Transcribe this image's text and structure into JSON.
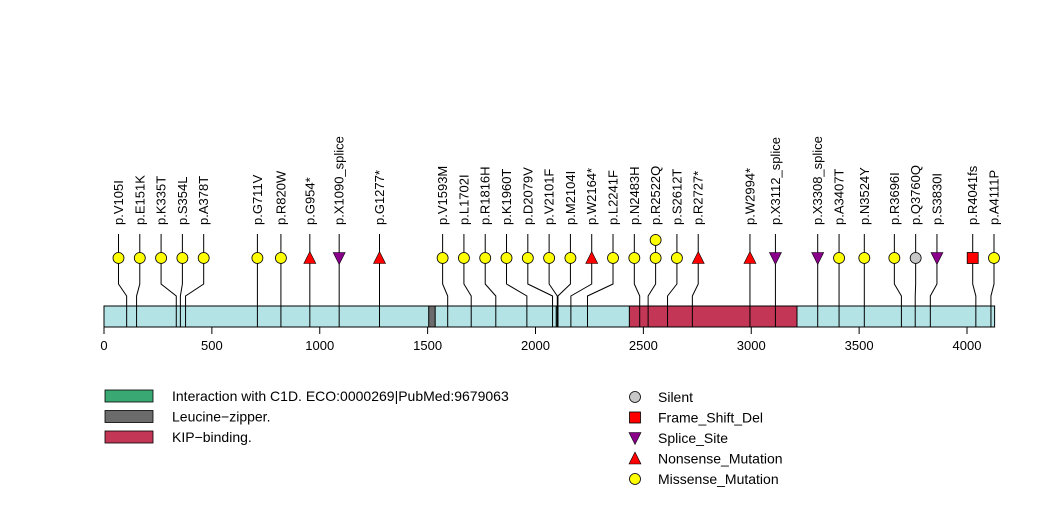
{
  "chart_data": {
    "type": "lollipop",
    "title": "",
    "xlabel": "",
    "ylabel": "",
    "protein_length": 4128,
    "xlim": [
      0,
      4128
    ],
    "x_ticks": [
      0,
      500,
      1000,
      1500,
      2000,
      2500,
      3000,
      3500,
      4000
    ],
    "x_tick_labels": [
      "0",
      "500",
      "1000",
      "1500",
      "2000",
      "2500",
      "3000",
      "3500",
      "4000"
    ],
    "backbone_color": "#b4e3e6",
    "domains": [
      {
        "name": "Interaction with C1D. ECO:0000269|PubMed:9679063",
        "start": 2096,
        "end": 2104,
        "color": "#3aa873"
      },
      {
        "name": "Leucine-zipper.",
        "start": 1505,
        "end": 1535,
        "color": "#6b6b6b"
      },
      {
        "name": "KIP-binding.",
        "start": 2435,
        "end": 3212,
        "color": "#c33655"
      }
    ],
    "mutation_types": {
      "Silent": {
        "color": "#c8c8c8",
        "shape": "circle"
      },
      "Frame_Shift_Del": {
        "color": "#ff0000",
        "shape": "square"
      },
      "Splice_Site": {
        "color": "#8b008b",
        "shape": "triangle-down"
      },
      "Nonsense_Mutation": {
        "color": "#ff0000",
        "shape": "triangle-up"
      },
      "Missense_Mutation": {
        "color": "#ffff00",
        "shape": "circle"
      }
    },
    "mutations": [
      {
        "label": "p.V105I",
        "position": 105,
        "type": "Missense_Mutation",
        "count": 1
      },
      {
        "label": "p.E151K",
        "position": 151,
        "type": "Missense_Mutation",
        "count": 1
      },
      {
        "label": "p.K335T",
        "position": 335,
        "type": "Missense_Mutation",
        "count": 1
      },
      {
        "label": "p.S354L",
        "position": 354,
        "type": "Missense_Mutation",
        "count": 1
      },
      {
        "label": "p.A378T",
        "position": 378,
        "type": "Missense_Mutation",
        "count": 1
      },
      {
        "label": "p.G711V",
        "position": 711,
        "type": "Missense_Mutation",
        "count": 1
      },
      {
        "label": "p.R820W",
        "position": 820,
        "type": "Missense_Mutation",
        "count": 1
      },
      {
        "label": "p.G954*",
        "position": 954,
        "type": "Nonsense_Mutation",
        "count": 1
      },
      {
        "label": "p.X1090_splice",
        "position": 1090,
        "type": "Splice_Site",
        "count": 1
      },
      {
        "label": "p.G1277*",
        "position": 1277,
        "type": "Nonsense_Mutation",
        "count": 1
      },
      {
        "label": "p.V1593M",
        "position": 1593,
        "type": "Missense_Mutation",
        "count": 1
      },
      {
        "label": "p.L1702I",
        "position": 1702,
        "type": "Missense_Mutation",
        "count": 1
      },
      {
        "label": "p.R1816H",
        "position": 1816,
        "type": "Missense_Mutation",
        "count": 1
      },
      {
        "label": "p.K1960T",
        "position": 1960,
        "type": "Missense_Mutation",
        "count": 1
      },
      {
        "label": "p.D2079V",
        "position": 2079,
        "type": "Missense_Mutation",
        "count": 1
      },
      {
        "label": "p.V2101F",
        "position": 2101,
        "type": "Missense_Mutation",
        "count": 1
      },
      {
        "label": "p.M2104I",
        "position": 2104,
        "type": "Missense_Mutation",
        "count": 1
      },
      {
        "label": "p.W2164*",
        "position": 2164,
        "type": "Nonsense_Mutation",
        "count": 1
      },
      {
        "label": "p.L2241F",
        "position": 2241,
        "type": "Missense_Mutation",
        "count": 1
      },
      {
        "label": "p.N2483H",
        "position": 2483,
        "type": "Missense_Mutation",
        "count": 1
      },
      {
        "label": "p.R2522Q",
        "position": 2522,
        "type": "Missense_Mutation",
        "count": 2
      },
      {
        "label": "p.S2612T",
        "position": 2612,
        "type": "Missense_Mutation",
        "count": 1
      },
      {
        "label": "p.R2727*",
        "position": 2727,
        "type": "Nonsense_Mutation",
        "count": 1
      },
      {
        "label": "p.W2994*",
        "position": 2994,
        "type": "Nonsense_Mutation",
        "count": 1
      },
      {
        "label": "p.X3112_splice",
        "position": 3112,
        "type": "Splice_Site",
        "count": 1
      },
      {
        "label": "p.X3308_splice",
        "position": 3308,
        "type": "Splice_Site",
        "count": 1
      },
      {
        "label": "p.A3407T",
        "position": 3407,
        "type": "Missense_Mutation",
        "count": 1
      },
      {
        "label": "p.N3524Y",
        "position": 3524,
        "type": "Missense_Mutation",
        "count": 1
      },
      {
        "label": "p.R3696I",
        "position": 3696,
        "type": "Missense_Mutation",
        "count": 1
      },
      {
        "label": "p.Q3760Q",
        "position": 3760,
        "type": "Silent",
        "count": 1
      },
      {
        "label": "p.S3830I",
        "position": 3830,
        "type": "Splice_Site",
        "count": 1
      },
      {
        "label": "p.R4041fs",
        "position": 4041,
        "type": "Frame_Shift_Del",
        "count": 1
      },
      {
        "label": "p.A4111P",
        "position": 4111,
        "type": "Missense_Mutation",
        "count": 1
      }
    ],
    "domain_legend": [
      {
        "label": "Interaction with C1D. ECO:0000269|PubMed:9679063",
        "color": "#3aa873"
      },
      {
        "label": "Leucine−zipper.",
        "color": "#6b6b6b"
      },
      {
        "label": "KIP−binding.",
        "color": "#c33655"
      }
    ],
    "mutation_legend": [
      {
        "label": "Silent",
        "type": "Silent"
      },
      {
        "label": "Frame_Shift_Del",
        "type": "Frame_Shift_Del"
      },
      {
        "label": "Splice_Site",
        "type": "Splice_Site"
      },
      {
        "label": "Nonsense_Mutation",
        "type": "Nonsense_Mutation"
      },
      {
        "label": "Missense_Mutation",
        "type": "Missense_Mutation"
      }
    ]
  }
}
